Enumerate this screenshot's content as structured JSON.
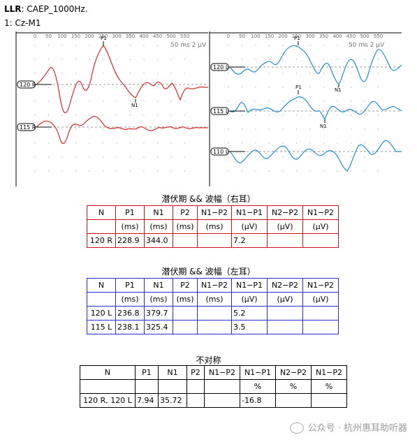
{
  "header": {
    "test": "LLR",
    "stim": ": CAEP_1000Hz.",
    "channel": "1: Cz-M1"
  },
  "axis_ticks": [
    "0",
    "50",
    "100",
    "150",
    "200",
    "250",
    "300",
    "350",
    "400",
    "450",
    "500",
    "550"
  ],
  "scale_label": "50 ms   2 µV",
  "right_panel": {
    "traces": [
      {
        "label": "120 R",
        "color": "#d42a2a",
        "peaks": [
          "P1",
          "N1"
        ]
      },
      {
        "label": "115 R",
        "color": "#d42a2a",
        "peaks": []
      }
    ]
  },
  "left_panel": {
    "traces": [
      {
        "label": "120 L",
        "color": "#1f8fd0",
        "peaks": [
          "P1",
          "N1"
        ]
      },
      {
        "label": "115 L",
        "color": "#1f8fd0",
        "peaks": [
          "P1",
          "N1"
        ]
      },
      {
        "label": "110 L",
        "color": "#1f8fd0",
        "peaks": []
      }
    ]
  },
  "table_right": {
    "title": "潜伏期 && 波幅（右耳）",
    "headers": [
      "N",
      "P1",
      "N1",
      "P2",
      "N1−P2",
      "N1−P1",
      "N2−P2",
      "N1−P2"
    ],
    "units": [
      "",
      "(ms)",
      "(ms)",
      "(ms)",
      "(ms)",
      "(µV)",
      "(µV)",
      "(µV)"
    ],
    "rows": [
      [
        "120 R",
        "228.9",
        "344.0",
        "",
        "",
        "7.2",
        "",
        ""
      ]
    ]
  },
  "table_left": {
    "title": "潜伏期 && 波幅（左耳）",
    "headers": [
      "N",
      "P1",
      "N1",
      "P2",
      "N1−P2",
      "N1−P1",
      "N2−P2",
      "N1−P2"
    ],
    "units": [
      "",
      "(ms)",
      "(ms)",
      "(ms)",
      "(ms)",
      "(µV)",
      "(µV)",
      "(µV)"
    ],
    "rows": [
      [
        "120 L",
        "236.8",
        "379.7",
        "",
        "",
        "5.2",
        "",
        ""
      ],
      [
        "115 L",
        "238.1",
        "325.4",
        "",
        "",
        "3.5",
        "",
        ""
      ]
    ]
  },
  "table_asym": {
    "title": "不对称",
    "headers": [
      "N",
      "P1",
      "N1",
      "P2",
      "N1−P2",
      "N1−P1",
      "N2−P2",
      "N1−P2"
    ],
    "units": [
      "",
      "",
      "",
      "",
      "",
      "%",
      "%",
      "%"
    ],
    "rows": [
      [
        "120 R, 120 L",
        "7.94",
        "35.72",
        "",
        "",
        "-16.8",
        "",
        ""
      ]
    ]
  },
  "watermark": "公众号 · 杭州惠耳助听器"
}
